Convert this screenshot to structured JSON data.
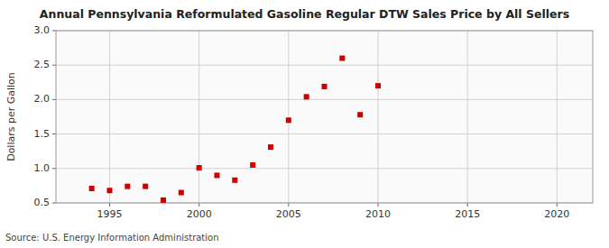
{
  "chart_data": {
    "type": "scatter",
    "title": "Annual Pennsylvania Reformulated Gasoline Regular DTW Sales Price by All Sellers",
    "y_label": "Dollars per Gallon",
    "source": "Source: U.S. Energy Information Administration",
    "x": [
      1994,
      1995,
      1996,
      1997,
      1998,
      1999,
      2000,
      2001,
      2002,
      2003,
      2004,
      2005,
      2006,
      2007,
      2008,
      2009,
      2010
    ],
    "values": [
      0.71,
      0.68,
      0.74,
      0.74,
      0.54,
      0.65,
      1.01,
      0.9,
      0.83,
      1.05,
      1.31,
      1.7,
      2.04,
      2.19,
      2.6,
      1.78,
      2.2
    ],
    "color": "#cc0000",
    "marker": "square",
    "xlim": [
      1992,
      2022
    ],
    "ylim": [
      0.5,
      3.0
    ],
    "xticks": [
      1995,
      2000,
      2005,
      2010,
      2015,
      2020
    ],
    "yticks": [
      0.5,
      {
        "value": 1.0,
        "label": "1.0"
      },
      1.5,
      {
        "value": 2.0,
        "label": "2.0"
      },
      2.5,
      {
        "value": 3.0,
        "label": "3.0"
      }
    ],
    "grid": true
  }
}
